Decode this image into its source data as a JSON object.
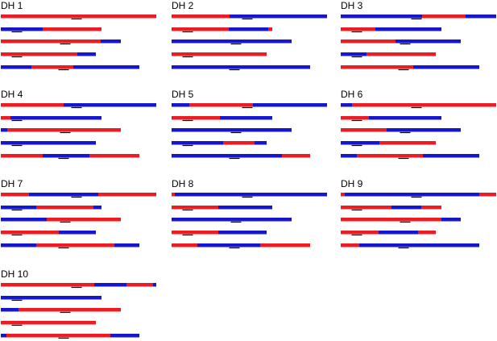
{
  "colors": {
    "r": "#ec1c24",
    "b": "#1616cc"
  },
  "markers": [
    94,
    20,
    80,
    20,
    78
  ],
  "panels": [
    {
      "label": "DH 1",
      "chromosomes": [
        [
          [
            0,
            193,
            "r"
          ]
        ],
        [
          [
            0,
            52,
            "b"
          ],
          [
            52,
            125,
            "r"
          ]
        ],
        [
          [
            0,
            124,
            "r"
          ],
          [
            124,
            149,
            "b"
          ]
        ],
        [
          [
            0,
            95,
            "r"
          ],
          [
            95,
            118,
            "b"
          ]
        ],
        [
          [
            0,
            38,
            "b"
          ],
          [
            38,
            90,
            "r"
          ],
          [
            90,
            172,
            "b"
          ]
        ]
      ]
    },
    {
      "label": "DH 2",
      "chromosomes": [
        [
          [
            0,
            72,
            "r"
          ],
          [
            72,
            193,
            "b"
          ]
        ],
        [
          [
            0,
            71,
            "r"
          ],
          [
            71,
            120,
            "b"
          ],
          [
            120,
            125,
            "r"
          ]
        ],
        [
          [
            0,
            149,
            "b"
          ]
        ],
        [
          [
            0,
            118,
            "r"
          ]
        ],
        [
          [
            0,
            172,
            "b"
          ]
        ]
      ]
    },
    {
      "label": "DH 3",
      "chromosomes": [
        [
          [
            0,
            101,
            "b"
          ],
          [
            101,
            155,
            "r"
          ],
          [
            155,
            193,
            "b"
          ]
        ],
        [
          [
            0,
            43,
            "r"
          ],
          [
            43,
            125,
            "b"
          ]
        ],
        [
          [
            0,
            68,
            "r"
          ],
          [
            68,
            149,
            "b"
          ]
        ],
        [
          [
            0,
            32,
            "b"
          ],
          [
            32,
            118,
            "r"
          ]
        ],
        [
          [
            0,
            90,
            "r"
          ],
          [
            90,
            172,
            "b"
          ]
        ]
      ]
    },
    {
      "label": "DH 4",
      "chromosomes": [
        [
          [
            0,
            78,
            "r"
          ],
          [
            78,
            193,
            "b"
          ]
        ],
        [
          [
            0,
            12,
            "r"
          ],
          [
            12,
            125,
            "b"
          ]
        ],
        [
          [
            0,
            8,
            "b"
          ],
          [
            8,
            149,
            "r"
          ]
        ],
        [
          [
            0,
            118,
            "b"
          ]
        ],
        [
          [
            0,
            52,
            "r"
          ],
          [
            52,
            110,
            "b"
          ],
          [
            110,
            172,
            "r"
          ]
        ]
      ]
    },
    {
      "label": "DH 5",
      "chromosomes": [
        [
          [
            0,
            22,
            "b"
          ],
          [
            22,
            101,
            "r"
          ],
          [
            101,
            193,
            "b"
          ]
        ],
        [
          [
            0,
            60,
            "r"
          ],
          [
            60,
            125,
            "b"
          ]
        ],
        [
          [
            0,
            149,
            "b"
          ]
        ],
        [
          [
            0,
            64,
            "b"
          ],
          [
            64,
            103,
            "r"
          ],
          [
            103,
            118,
            "b"
          ]
        ],
        [
          [
            0,
            137,
            "b"
          ],
          [
            137,
            172,
            "r"
          ]
        ]
      ]
    },
    {
      "label": "DH 6",
      "chromosomes": [
        [
          [
            0,
            14,
            "b"
          ],
          [
            14,
            193,
            "r"
          ]
        ],
        [
          [
            0,
            35,
            "r"
          ],
          [
            35,
            125,
            "b"
          ]
        ],
        [
          [
            0,
            57,
            "r"
          ],
          [
            57,
            149,
            "b"
          ]
        ],
        [
          [
            0,
            48,
            "b"
          ],
          [
            48,
            118,
            "r"
          ]
        ],
        [
          [
            0,
            20,
            "b"
          ],
          [
            20,
            102,
            "r"
          ],
          [
            102,
            172,
            "b"
          ]
        ]
      ]
    },
    {
      "label": "DH 7",
      "chromosomes": [
        [
          [
            0,
            35,
            "r"
          ],
          [
            35,
            121,
            "b"
          ],
          [
            121,
            193,
            "r"
          ]
        ],
        [
          [
            0,
            44,
            "b"
          ],
          [
            44,
            115,
            "r"
          ],
          [
            115,
            125,
            "b"
          ]
        ],
        [
          [
            0,
            57,
            "b"
          ],
          [
            57,
            149,
            "r"
          ]
        ],
        [
          [
            0,
            72,
            "r"
          ],
          [
            72,
            118,
            "b"
          ]
        ],
        [
          [
            0,
            44,
            "b"
          ],
          [
            44,
            141,
            "r"
          ],
          [
            141,
            172,
            "b"
          ]
        ]
      ]
    },
    {
      "label": "DH 8",
      "chromosomes": [
        [
          [
            0,
            4,
            "r"
          ],
          [
            4,
            193,
            "b"
          ]
        ],
        [
          [
            0,
            58,
            "r"
          ],
          [
            58,
            125,
            "b"
          ]
        ],
        [
          [
            0,
            149,
            "b"
          ]
        ],
        [
          [
            0,
            58,
            "r"
          ],
          [
            58,
            118,
            "b"
          ]
        ],
        [
          [
            0,
            32,
            "r"
          ],
          [
            32,
            110,
            "b"
          ],
          [
            110,
            172,
            "r"
          ]
        ]
      ]
    },
    {
      "label": "DH 9",
      "chromosomes": [
        [
          [
            0,
            5,
            "r"
          ],
          [
            5,
            172,
            "b"
          ],
          [
            172,
            193,
            "r"
          ]
        ],
        [
          [
            0,
            63,
            "r"
          ],
          [
            63,
            100,
            "b"
          ],
          [
            100,
            125,
            "r"
          ]
        ],
        [
          [
            0,
            125,
            "r"
          ],
          [
            125,
            149,
            "b"
          ]
        ],
        [
          [
            0,
            47,
            "r"
          ],
          [
            47,
            96,
            "b"
          ],
          [
            96,
            118,
            "r"
          ]
        ],
        [
          [
            0,
            23,
            "r"
          ],
          [
            23,
            172,
            "b"
          ]
        ]
      ]
    },
    {
      "label": "DH 10",
      "chromosomes": [
        [
          [
            0,
            116,
            "r"
          ],
          [
            116,
            156,
            "b"
          ],
          [
            156,
            189,
            "r"
          ],
          [
            189,
            193,
            "b"
          ]
        ],
        [
          [
            0,
            125,
            "b"
          ]
        ],
        [
          [
            0,
            22,
            "b"
          ],
          [
            22,
            149,
            "r"
          ]
        ],
        [
          [
            0,
            118,
            "r"
          ]
        ],
        [
          [
            0,
            7,
            "b"
          ],
          [
            7,
            136,
            "r"
          ],
          [
            136,
            172,
            "b"
          ]
        ]
      ]
    }
  ]
}
